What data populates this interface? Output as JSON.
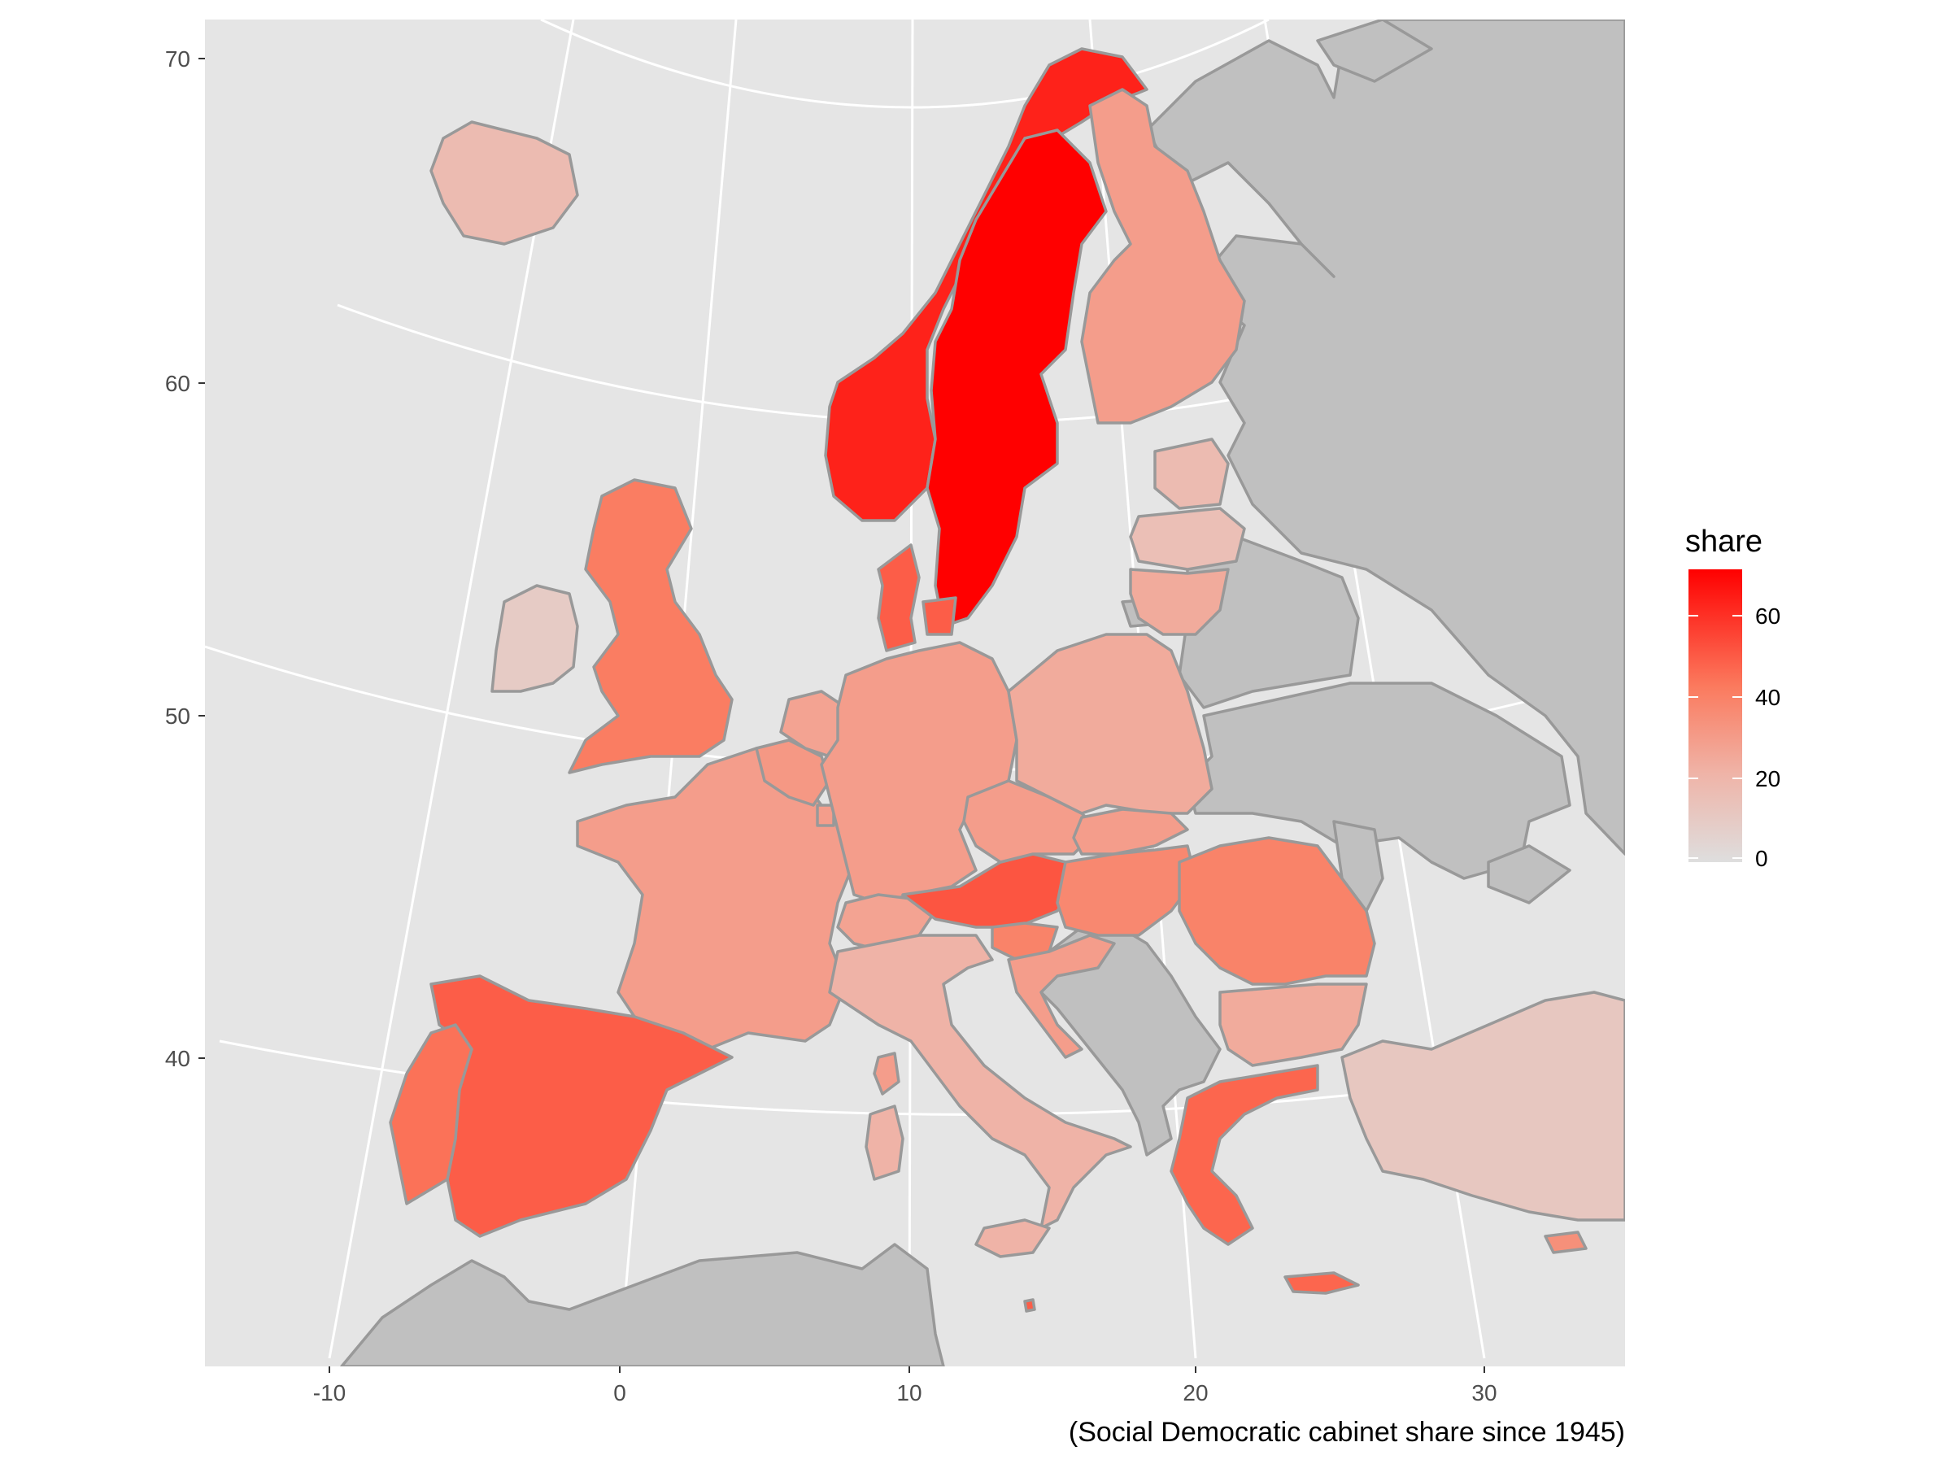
{
  "map": {
    "y_ticks": [
      "70",
      "60",
      "50",
      "40"
    ],
    "x_ticks": [
      "-10",
      "0",
      "10",
      "20",
      "30"
    ],
    "caption": "(Social Democratic cabinet share since 1945)"
  },
  "legend": {
    "title": "share",
    "labels": [
      "60",
      "40",
      "20",
      "0"
    ],
    "scale_min": 0,
    "scale_max": 72,
    "color_low": "#dedede",
    "color_high": "#ff0000"
  },
  "colors": {
    "panel": "#e5e5e5",
    "non_data_land": "#c0c0c0",
    "border": "#999999",
    "graticule": "#ffffff"
  },
  "countries": [
    {
      "name": "Sweden",
      "share": 72
    },
    {
      "name": "Norway",
      "share": 64
    },
    {
      "name": "Denmark",
      "share": 50
    },
    {
      "name": "Austria",
      "share": 52
    },
    {
      "name": "Spain",
      "share": 50
    },
    {
      "name": "Portugal",
      "share": 45
    },
    {
      "name": "Greece",
      "share": 48
    },
    {
      "name": "Malta",
      "share": 50
    },
    {
      "name": "United Kingdom",
      "share": 42
    },
    {
      "name": "Romania",
      "share": 40
    },
    {
      "name": "Slovenia",
      "share": 40
    },
    {
      "name": "Hungary",
      "share": 38
    },
    {
      "name": "Cyprus",
      "share": 35
    },
    {
      "name": "Finland",
      "share": 30
    },
    {
      "name": "Germany",
      "share": 30
    },
    {
      "name": "France",
      "share": 30
    },
    {
      "name": "Belgium",
      "share": 32
    },
    {
      "name": "Netherlands",
      "share": 28
    },
    {
      "name": "Czech Republic",
      "share": 30
    },
    {
      "name": "Slovakia",
      "share": 30
    },
    {
      "name": "Switzerland",
      "share": 28
    },
    {
      "name": "Croatia",
      "share": 30
    },
    {
      "name": "Luxembourg",
      "share": 30
    },
    {
      "name": "Poland",
      "share": 25
    },
    {
      "name": "Lithuania",
      "share": 25
    },
    {
      "name": "Bulgaria",
      "share": 25
    },
    {
      "name": "Italy",
      "share": 22
    },
    {
      "name": "Estonia",
      "share": 18
    },
    {
      "name": "Iceland",
      "share": 18
    },
    {
      "name": "Latvia",
      "share": 16
    },
    {
      "name": "Turkey",
      "share": 12
    },
    {
      "name": "Ireland",
      "share": 10
    }
  ]
}
